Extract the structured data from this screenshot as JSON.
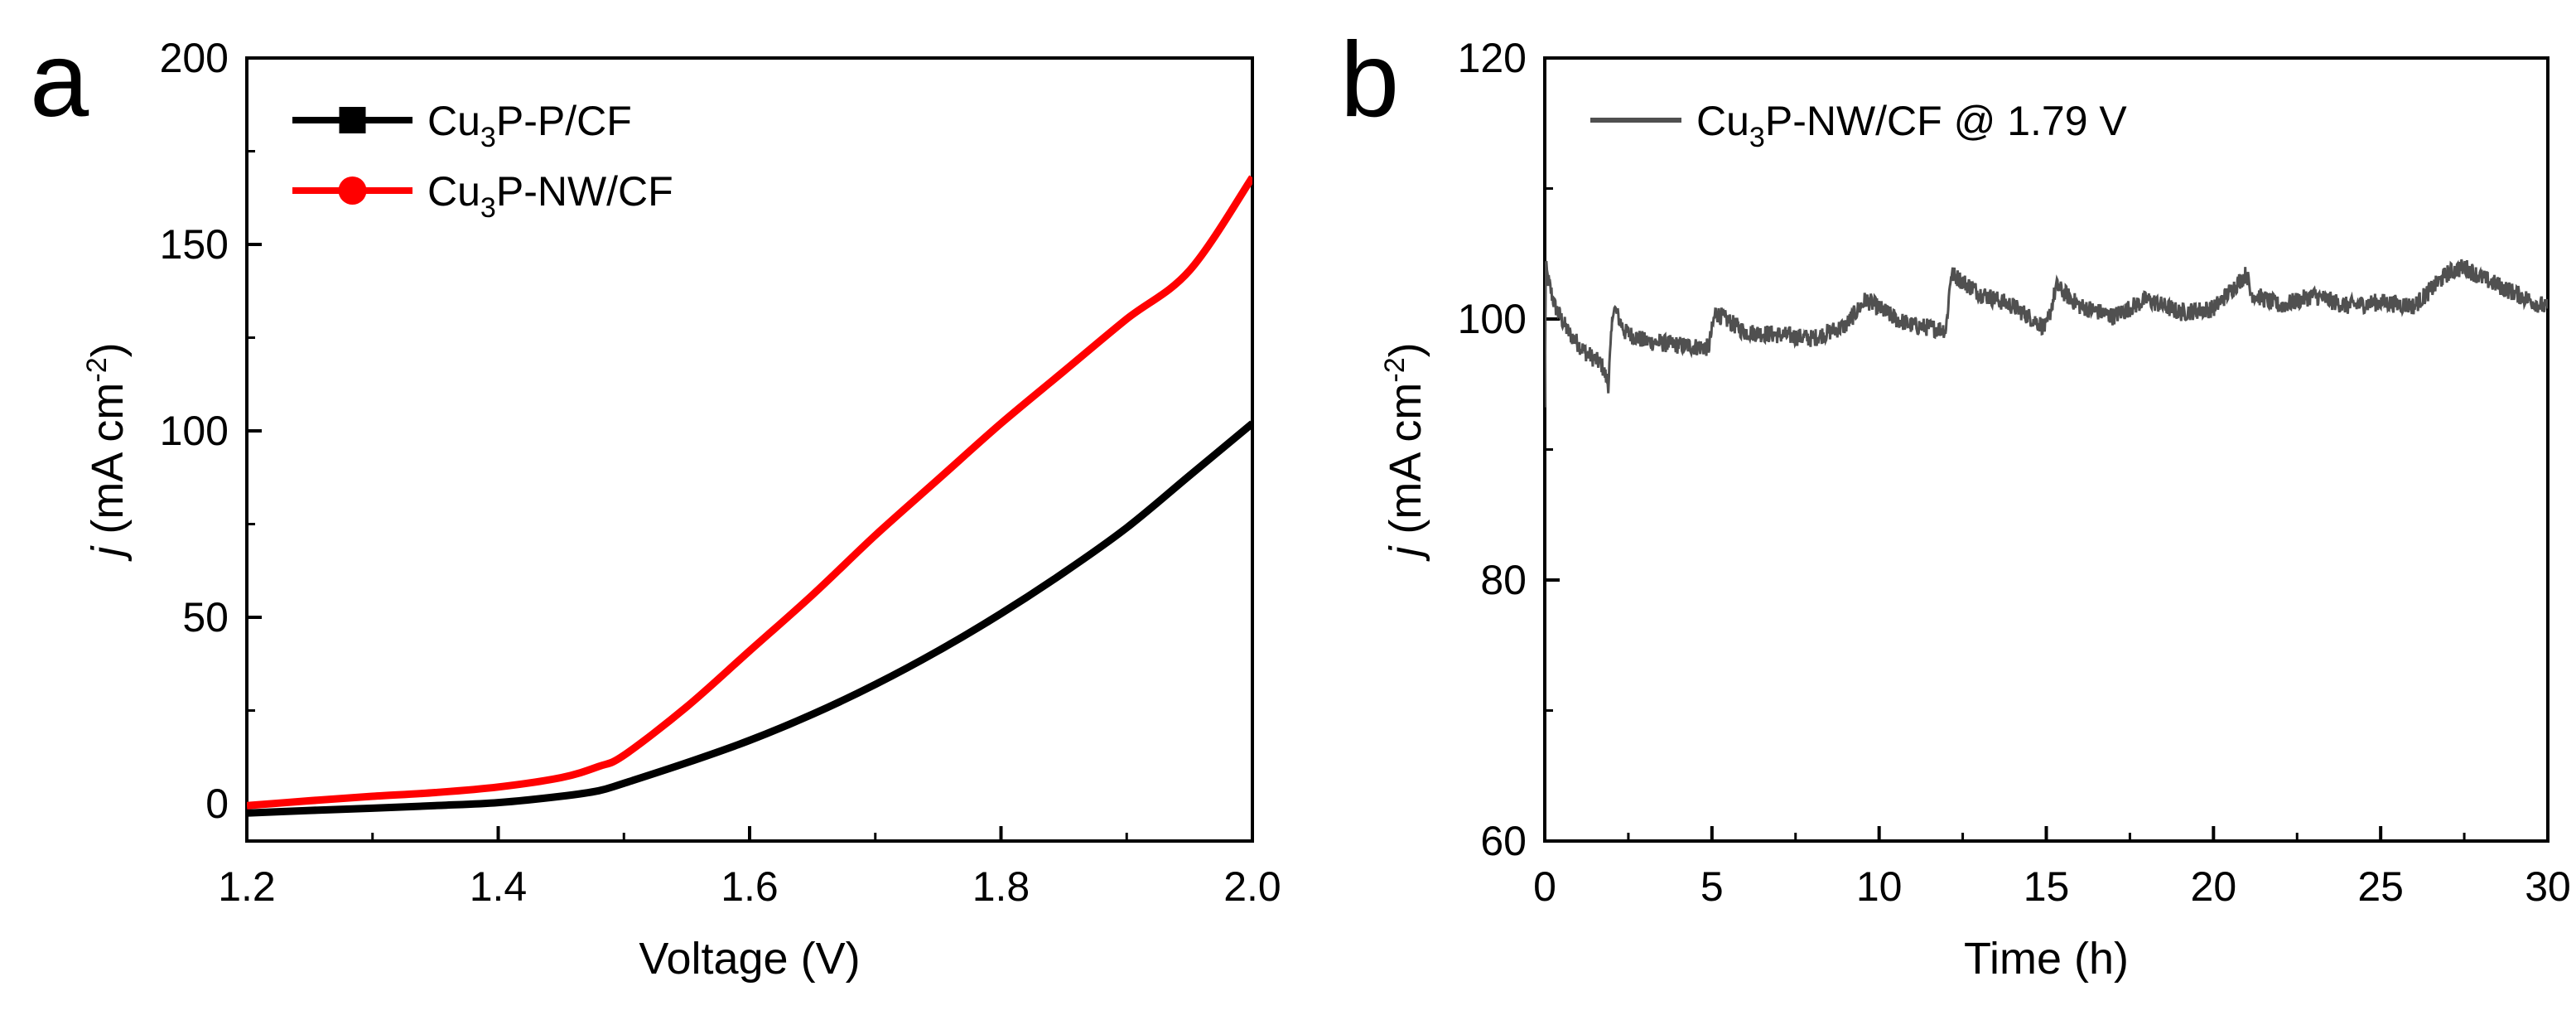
{
  "chart_data": [
    {
      "panel": "a",
      "type": "line",
      "xlabel": "Voltage (V)",
      "ylabel_var": "j",
      "ylabel_unit": "(mA cm",
      "ylabel_exp": "-2",
      "ylabel_close": ")",
      "xlim": [
        1.2,
        2.0
      ],
      "ylim": [
        -10,
        200
      ],
      "xticks": [
        1.2,
        1.4,
        1.6,
        1.8,
        2.0
      ],
      "xtick_labels": [
        "1.2",
        "1.4",
        "1.6",
        "1.8",
        "2.0"
      ],
      "yticks": [
        0,
        50,
        100,
        150,
        200
      ],
      "ytick_labels": [
        "0",
        "50",
        "100",
        "150",
        "200"
      ],
      "legend_position": "top-left",
      "series": [
        {
          "name": "Cu3P-P/CF",
          "label_pre": "Cu",
          "label_sub": "3",
          "label_post": "P-P/CF",
          "color": "#000000",
          "marker": "square",
          "x": [
            1.2,
            1.25,
            1.3,
            1.35,
            1.4,
            1.45,
            1.48,
            1.5,
            1.55,
            1.6,
            1.65,
            1.7,
            1.75,
            1.8,
            1.85,
            1.9,
            1.95,
            2.0
          ],
          "y": [
            -2.5,
            -1.8,
            -1.2,
            -0.5,
            0.3,
            2,
            3.5,
            5.5,
            11,
            17,
            24,
            32,
            41,
            51,
            62,
            74,
            88,
            102
          ]
        },
        {
          "name": "Cu3P-NW/CF",
          "label_pre": "Cu",
          "label_sub": "3",
          "label_post": "P-NW/CF",
          "color": "#ff0000",
          "marker": "circle",
          "x": [
            1.2,
            1.25,
            1.3,
            1.35,
            1.4,
            1.45,
            1.48,
            1.5,
            1.55,
            1.6,
            1.65,
            1.7,
            1.75,
            1.8,
            1.85,
            1.9,
            1.95,
            2.0
          ],
          "y": [
            -0.5,
            0.8,
            2,
            3,
            4.5,
            7,
            10,
            13,
            26,
            41,
            56,
            72,
            87,
            102,
            116,
            130,
            143,
            168
          ]
        }
      ]
    },
    {
      "panel": "b",
      "type": "line",
      "xlabel": "Time (h)",
      "ylabel_var": "j",
      "ylabel_unit": "(mA cm",
      "ylabel_exp": "-2",
      "ylabel_close": ")",
      "xlim": [
        0,
        30
      ],
      "ylim": [
        60,
        120
      ],
      "xticks": [
        0,
        5,
        10,
        15,
        20,
        25,
        30
      ],
      "xtick_labels": [
        "0",
        "5",
        "10",
        "15",
        "20",
        "25",
        "30"
      ],
      "yticks": [
        60,
        80,
        100,
        120
      ],
      "ytick_labels": [
        "60",
        "80",
        "100",
        "120"
      ],
      "legend_position": "top-left",
      "series": [
        {
          "name": "Cu3P-NW/CF @ 1.79 V",
          "label_pre": "Cu",
          "label_sub": "3",
          "label_post": "P-NW/CF @ 1.79 V",
          "color": "#505050",
          "x": [
            0,
            0.03,
            0.1,
            0.3,
            0.7,
            1.2,
            1.7,
            1.9,
            2.05,
            2.4,
            3,
            4,
            4.9,
            5.1,
            6,
            7,
            8,
            9,
            9.6,
            10.5,
            11,
            12,
            12.15,
            13,
            14,
            15,
            15.3,
            16,
            17,
            18,
            19,
            20,
            21,
            21.1,
            22,
            23,
            24,
            25,
            26,
            27,
            27.5,
            28,
            29,
            30
          ],
          "y": [
            93,
            104,
            103,
            101,
            99,
            97.5,
            96.5,
            95,
            101,
            99,
            98.3,
            98,
            97.8,
            100.5,
            99,
            98.8,
            98.5,
            99.5,
            101.5,
            100,
            99.5,
            99.2,
            103.5,
            102,
            101,
            99.3,
            102.5,
            101,
            100.2,
            101.5,
            100.5,
            100.8,
            103.5,
            102,
            101,
            101.8,
            101,
            101.3,
            101,
            103.5,
            104,
            103.2,
            102,
            100.8
          ]
        }
      ]
    }
  ]
}
